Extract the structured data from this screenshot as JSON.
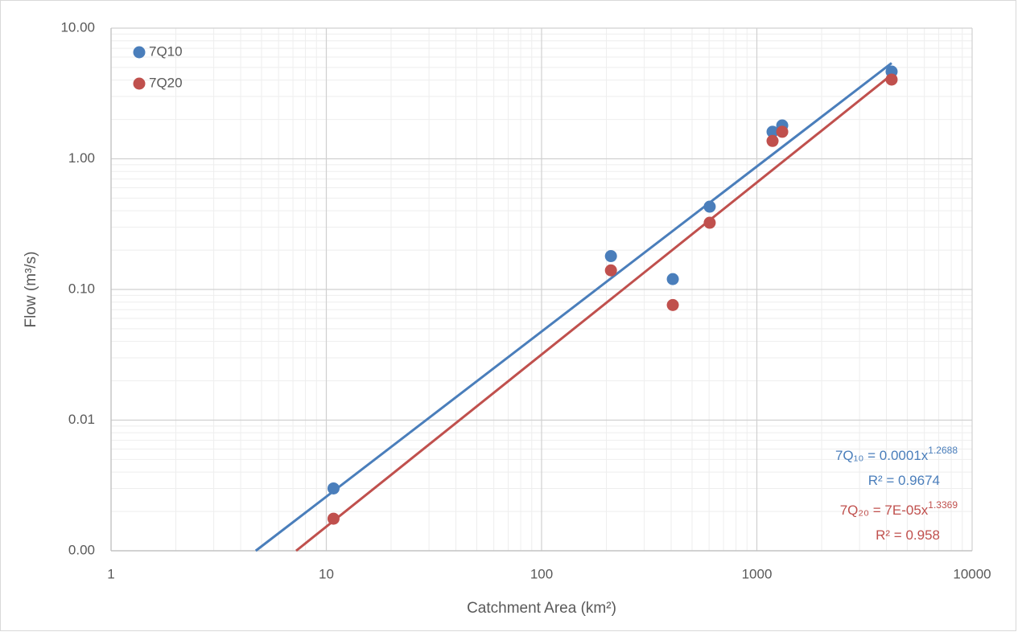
{
  "chart_data": {
    "type": "scatter",
    "x_label": "Catchment Area (km²)",
    "y_label": "Flow (m³/s)",
    "xscale": "log",
    "yscale": "log",
    "xlim": [
      1,
      10000
    ],
    "ylim": [
      0.001,
      10
    ],
    "xticks": [
      1,
      10,
      100,
      1000,
      10000
    ],
    "yticks": [
      {
        "value": 0.001,
        "label": "0.00"
      },
      {
        "value": 0.01,
        "label": "0.01"
      },
      {
        "value": 0.1,
        "label": "0.10"
      },
      {
        "value": 1,
        "label": "1.00"
      },
      {
        "value": 10,
        "label": "10.00"
      }
    ],
    "grid": true,
    "minor_grid": true,
    "legend": "top-left",
    "series": [
      {
        "name": "7Q10",
        "color": "#4a7ebb",
        "x": [
          10.8,
          210,
          407,
          604,
          1183,
          1312,
          4227
        ],
        "values": [
          0.003,
          0.18,
          0.12,
          0.43,
          1.61,
          1.8,
          4.65
        ],
        "trendline": {
          "x": [
            4.7,
            4227
          ],
          "values": [
            0.001,
            5.4
          ]
        },
        "equation": {
          "text": "7Q₁₀ = 0.0001x",
          "exponent": "1.2688",
          "r2": "R² = 0.9674"
        }
      },
      {
        "name": "7Q20",
        "color": "#c0504d",
        "x": [
          10.8,
          210,
          407,
          604,
          1183,
          1312,
          4227
        ],
        "values": [
          0.00176,
          0.14,
          0.076,
          0.324,
          1.37,
          1.61,
          4.04
        ],
        "trendline": {
          "x": [
            7.24,
            4227
          ],
          "values": [
            0.001,
            4.4
          ]
        },
        "equation": {
          "text": "7Q₂₀ = 7E-05x",
          "exponent": "1.3369",
          "r2": "R² = 0.958"
        }
      }
    ]
  }
}
